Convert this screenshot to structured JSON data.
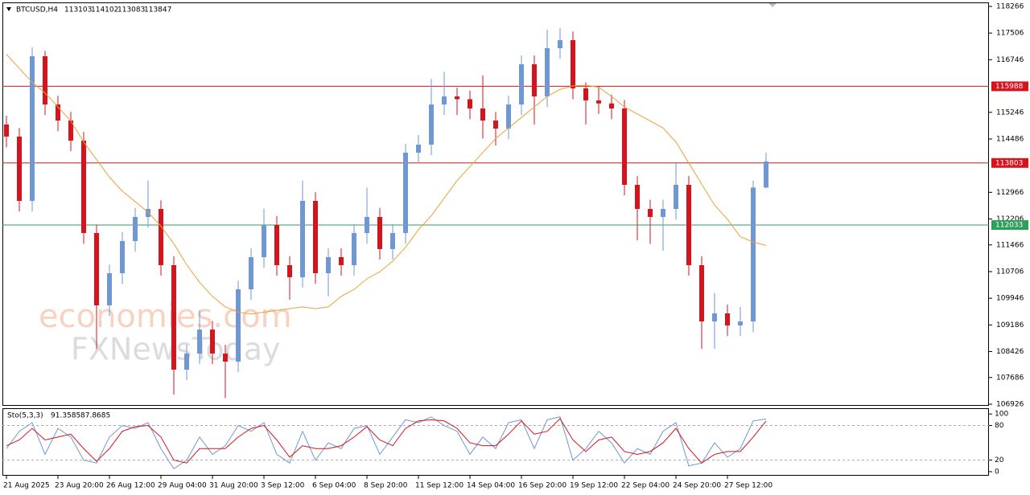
{
  "chart_data": [
    {
      "type": "candlestick",
      "title": "BTCUSD,H4",
      "categories": [
        "21 Aug 2025",
        null,
        null,
        null,
        "23 Aug 20:00",
        null,
        null,
        null,
        "26 Aug 12:00",
        null,
        null,
        null,
        "29 Aug 04:00",
        null,
        null,
        null,
        "31 Aug 20:00",
        null,
        null,
        null,
        "3 Sep 12:00",
        null,
        null,
        null,
        "6 Sep 04:00",
        null,
        null,
        null,
        "8 Sep 20:00",
        null,
        null,
        null,
        "11 Sep 12:00",
        null,
        null,
        null,
        "14 Sep 04:00",
        null,
        null,
        null,
        "16 Sep 20:00",
        null,
        null,
        null,
        "19 Sep 12:00",
        null,
        null,
        null,
        "22 Sep 04:00",
        null,
        null,
        null,
        "24 Sep 20:00",
        null,
        null,
        null,
        "27 Sep 12:00",
        null,
        null,
        null
      ],
      "open": [
        114900,
        114555,
        112722,
        116845,
        115470,
        115013,
        114440,
        111806,
        109744,
        110660,
        111577,
        112264,
        112493,
        110889,
        107911,
        108370,
        109053,
        108370,
        108140,
        110202,
        111119,
        112035,
        110889,
        110545,
        112722,
        110660,
        111119,
        110889,
        111806,
        112264,
        111348,
        111806,
        114096,
        114325,
        115470,
        115700,
        115620,
        115356,
        115013,
        114784,
        115470,
        116616,
        115700,
        117075,
        117304,
        115929,
        115585,
        115500,
        115356,
        113180,
        112493,
        112264,
        112493,
        113180,
        110889,
        109285,
        109515,
        109170,
        109285,
        113103
      ],
      "high": [
        115150,
        114800,
        117100,
        117000,
        115720,
        115260,
        114690,
        112050,
        110910,
        111830,
        112520,
        113300,
        112740,
        111140,
        108620,
        109600,
        109300,
        108620,
        110450,
        111370,
        112500,
        112290,
        111140,
        113300,
        112970,
        111370,
        111370,
        112060,
        113100,
        112520,
        112060,
        114350,
        114600,
        116200,
        116400,
        115950,
        115870,
        116300,
        115260,
        115720,
        116870,
        116870,
        117600,
        117650,
        117550,
        116100,
        116000,
        115750,
        115600,
        113430,
        112750,
        112750,
        113800,
        113430,
        111140,
        110100,
        109770,
        109700,
        113300,
        114102
      ],
      "low": [
        114250,
        112420,
        112420,
        115170,
        114710,
        114140,
        111500,
        108500,
        109440,
        110360,
        111270,
        111960,
        110590,
        107200,
        107610,
        108070,
        108070,
        107100,
        107840,
        109900,
        110820,
        110590,
        109900,
        110250,
        110360,
        110000,
        110590,
        110590,
        111500,
        111050,
        111050,
        111500,
        113800,
        114020,
        115170,
        115170,
        115050,
        114500,
        114300,
        114480,
        115170,
        114900,
        115400,
        116770,
        115620,
        114900,
        115200,
        115050,
        112880,
        111600,
        111500,
        111300,
        112190,
        110590,
        108500,
        108500,
        108870,
        108870,
        108980,
        113083
      ],
      "close": [
        114555,
        112722,
        116845,
        115470,
        115013,
        114440,
        111806,
        109744,
        110660,
        111577,
        112264,
        112493,
        110889,
        107911,
        108370,
        109053,
        108370,
        108140,
        110202,
        111119,
        112035,
        110889,
        110545,
        112722,
        110660,
        111119,
        110889,
        111806,
        112264,
        111348,
        111806,
        114096,
        114325,
        115470,
        115700,
        115620,
        115356,
        115013,
        114784,
        115470,
        116616,
        115700,
        117075,
        117304,
        115929,
        115585,
        115500,
        115356,
        113180,
        112493,
        112264,
        112493,
        113180,
        110889,
        109285,
        109515,
        109170,
        109285,
        113103,
        113847
      ],
      "up_color": "#6f97d6",
      "down_color": "#d7141e",
      "overlay": {
        "color": "#e8a33a",
        "values": [
          116900,
          116500,
          116100,
          115800,
          115400,
          115000,
          114400,
          113900,
          113400,
          113000,
          112700,
          112400,
          112000,
          111500,
          110900,
          110400,
          110000,
          109700,
          109550,
          109500,
          109550,
          109600,
          109650,
          109700,
          109650,
          109700,
          110000,
          110200,
          110500,
          110700,
          111000,
          111400,
          111900,
          112300,
          112800,
          113300,
          113700,
          114100,
          114500,
          114800,
          115100,
          115400,
          115700,
          115900,
          116000,
          116020,
          115960,
          115700,
          115400,
          115200,
          115000,
          114800,
          114400,
          113800,
          113200,
          112600,
          112200,
          111700,
          111550,
          111450
        ]
      },
      "levels": [
        {
          "value": 115988,
          "color": "#d7141e"
        },
        {
          "value": 113803,
          "color": "#d7141e"
        },
        {
          "value": 112033,
          "color": "#2e9e5b"
        }
      ],
      "ylim": [
        106880,
        118380
      ],
      "yticks": [
        118266,
        117506,
        116746,
        115246,
        114486,
        112966,
        112206,
        111466,
        110706,
        109946,
        109186,
        108426,
        107686,
        106926
      ],
      "watermark": [
        "economies.com",
        "FXNewsToday"
      ]
    },
    {
      "type": "line",
      "title": "Sto(5,3,3)",
      "series": [
        {
          "color": "#6f97d6",
          "values": [
            40,
            70,
            85,
            30,
            75,
            60,
            20,
            15,
            60,
            80,
            75,
            85,
            40,
            5,
            20,
            60,
            30,
            45,
            80,
            70,
            85,
            30,
            15,
            70,
            20,
            50,
            40,
            75,
            80,
            30,
            60,
            90,
            85,
            95,
            80,
            70,
            30,
            60,
            40,
            85,
            90,
            40,
            90,
            95,
            20,
            40,
            70,
            50,
            15,
            40,
            30,
            70,
            85,
            10,
            15,
            50,
            25,
            40,
            88,
            91.3585
          ]
        },
        {
          "color": "#d7141e",
          "values": [
            45,
            55,
            75,
            55,
            60,
            65,
            40,
            18,
            40,
            70,
            78,
            80,
            60,
            20,
            15,
            40,
            40,
            40,
            60,
            75,
            80,
            55,
            25,
            45,
            40,
            40,
            45,
            60,
            78,
            55,
            45,
            75,
            88,
            90,
            88,
            75,
            50,
            45,
            45,
            65,
            88,
            65,
            70,
            92,
            55,
            35,
            55,
            60,
            35,
            30,
            35,
            50,
            75,
            40,
            15,
            30,
            35,
            35,
            60,
            87.8685
          ]
        }
      ],
      "levels": [
        20,
        80
      ],
      "ylim": [
        -7,
        110
      ],
      "yticks": [
        0,
        20,
        80,
        100
      ]
    }
  ]
}
